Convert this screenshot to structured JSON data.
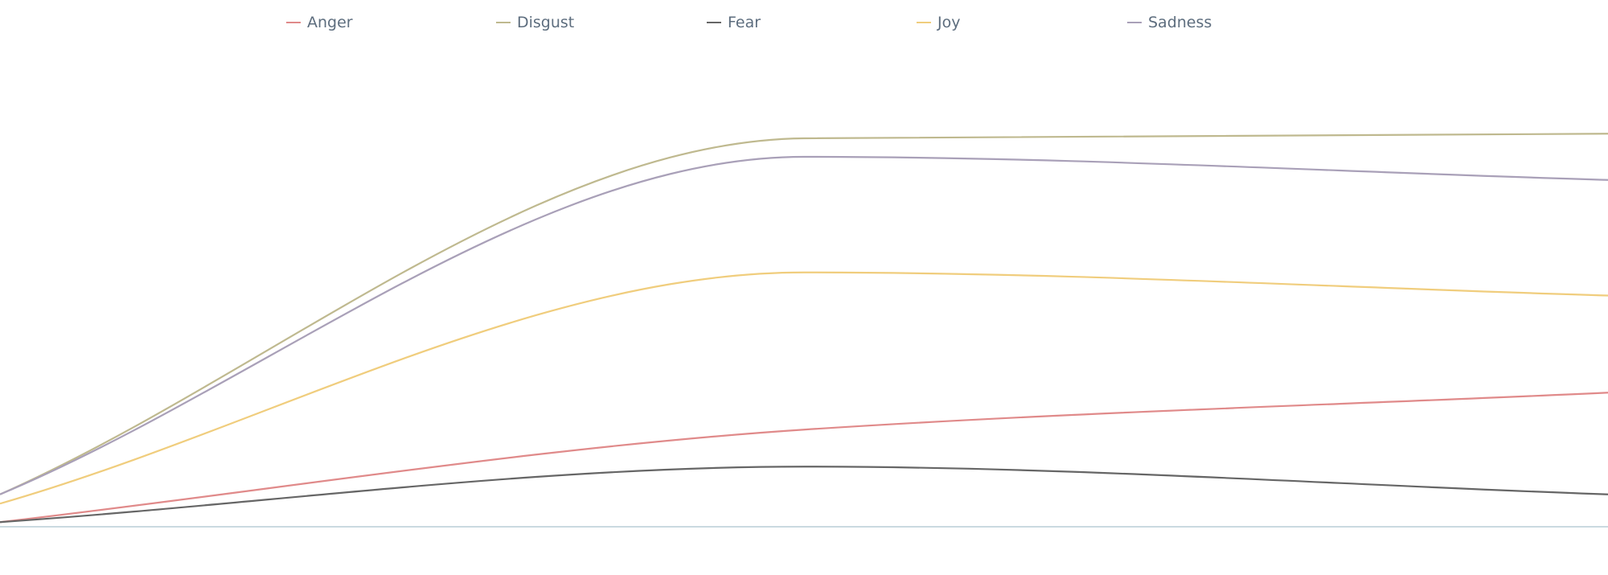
{
  "chart_data": {
    "type": "line",
    "x": [
      0,
      1,
      2
    ],
    "ylim": [
      0,
      1
    ],
    "grid": false,
    "legend_position": "top",
    "series": [
      {
        "name": "Anger",
        "color": "#e08a8a",
        "values": [
          0.01,
          0.21,
          0.29
        ]
      },
      {
        "name": "Disgust",
        "color": "#bfb98f",
        "values": [
          0.07,
          0.84,
          0.85
        ]
      },
      {
        "name": "Fear",
        "color": "#666666",
        "values": [
          0.01,
          0.13,
          0.07
        ]
      },
      {
        "name": "Joy",
        "color": "#f0cd7d",
        "values": [
          0.05,
          0.55,
          0.5
        ]
      },
      {
        "name": "Sadness",
        "color": "#a9a0b8",
        "values": [
          0.07,
          0.8,
          0.75
        ]
      }
    ]
  }
}
